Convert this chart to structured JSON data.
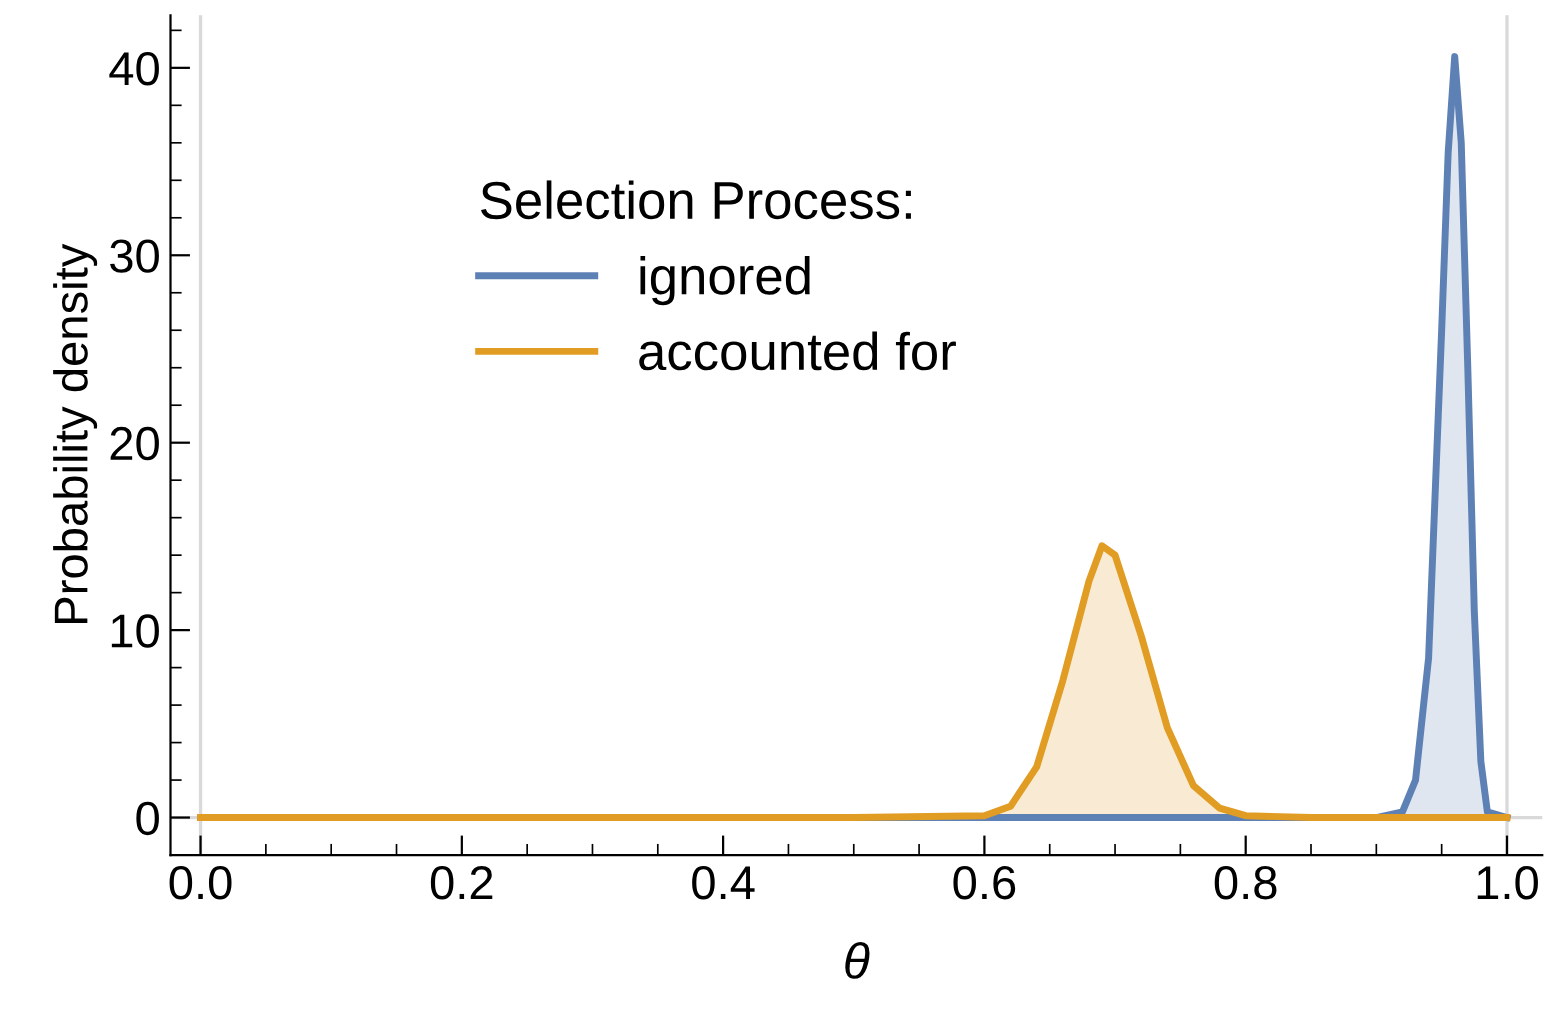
{
  "chart_data": {
    "type": "area",
    "xlabel": "θ",
    "ylabel": "Probability density",
    "legend_title": "Selection Process:",
    "legend": "top left",
    "grid": false,
    "xlim": [
      -0.023,
      1.027
    ],
    "ylim": [
      -2,
      42.8
    ],
    "xticks": [
      {
        "value": 0,
        "label": "0.0"
      },
      0.2,
      0.4,
      0.6,
      0.8,
      {
        "value": 1,
        "label": "1.0"
      }
    ],
    "yticks": [
      0,
      10,
      20,
      30,
      40
    ],
    "ref_lines": [
      {
        "axis": "x",
        "value": 0,
        "color": "#d9d9d9"
      },
      {
        "axis": "x",
        "value": 1,
        "color": "#d9d9d9"
      },
      {
        "axis": "y",
        "value": 0,
        "color": "#d9d9d9"
      }
    ],
    "series": [
      {
        "name": "ignored",
        "color": "#5e81b5",
        "x": [
          0,
          0.9,
          0.92,
          0.93,
          0.94,
          0.95,
          0.955,
          0.96,
          0.965,
          0.97,
          0.975,
          0.98,
          0.985,
          1.0
        ],
        "values": [
          0,
          0,
          0.3,
          2,
          8.5,
          26,
          35.5,
          40.6,
          36,
          24,
          11,
          3,
          0.3,
          0
        ]
      },
      {
        "name": "accounted for",
        "color": "#e19c24",
        "x": [
          0,
          0.5,
          0.6,
          0.62,
          0.64,
          0.66,
          0.68,
          0.69,
          0.7,
          0.72,
          0.74,
          0.76,
          0.78,
          0.8,
          0.85,
          1.0
        ],
        "values": [
          0,
          0,
          0.1,
          0.6,
          2.7,
          7.3,
          12.6,
          14.5,
          14,
          9.7,
          4.8,
          1.7,
          0.5,
          0.1,
          0,
          0
        ]
      }
    ]
  }
}
